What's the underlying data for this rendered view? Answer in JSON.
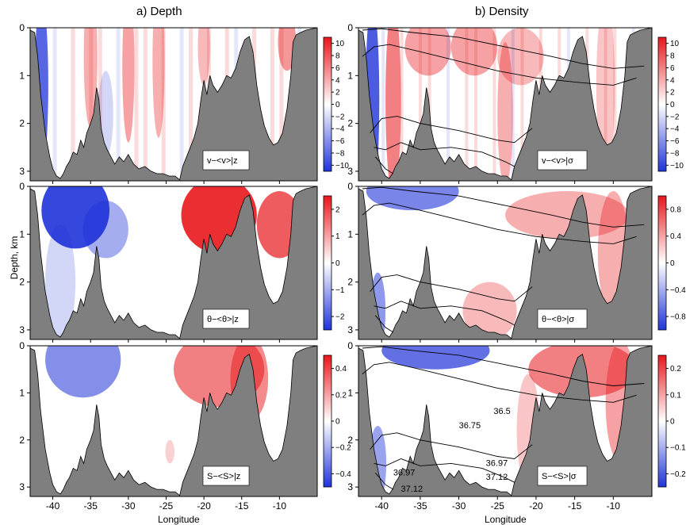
{
  "figure": {
    "col_titles": [
      "a) Depth",
      "b) Density"
    ],
    "ylabel": "Depth, km",
    "xlabel": "Longitude"
  },
  "chart_data": [
    {
      "type": "heatmap",
      "panel": "top-left",
      "inset_label": "v−<v>|z",
      "xlim": [
        -43,
        -5
      ],
      "ylim": [
        3.2,
        0
      ],
      "x_ticks": [
        "-40",
        "-35",
        "-30",
        "-25",
        "-20",
        "-15",
        "-10"
      ],
      "y_ticks": [
        "0",
        "1",
        "2",
        "3"
      ],
      "colorbar": {
        "range": [
          -10,
          10
        ],
        "ticks": [
          "10",
          "8",
          "6",
          "4",
          "2",
          "0",
          "−2",
          "−4",
          "−6",
          "−8",
          "−10"
        ]
      }
    },
    {
      "type": "heatmap",
      "panel": "top-right",
      "inset_label": "v−<v>|σ",
      "xlim": [
        -43,
        -5
      ],
      "ylim": [
        3.2,
        0
      ],
      "x_ticks": [
        "-40",
        "-35",
        "-30",
        "-25",
        "-20",
        "-15",
        "-10"
      ],
      "y_ticks": [
        "0",
        "1",
        "2",
        "3"
      ],
      "colorbar": {
        "range": [
          -10,
          10
        ],
        "ticks": [
          "10",
          "8",
          "6",
          "4",
          "2",
          "0",
          "−2",
          "−4",
          "−6",
          "−8",
          "−10"
        ]
      }
    },
    {
      "type": "heatmap",
      "panel": "middle-left",
      "inset_label": "θ−<θ>|z",
      "xlim": [
        -43,
        -5
      ],
      "ylim": [
        3.2,
        0
      ],
      "x_ticks": [
        "-40",
        "-35",
        "-30",
        "-25",
        "-20",
        "-15",
        "-10"
      ],
      "y_ticks": [
        "0",
        "1",
        "2",
        "3"
      ],
      "colorbar": {
        "range": [
          -2.5,
          2.5
        ],
        "ticks": [
          "2",
          "1",
          "0",
          "−1",
          "−2"
        ]
      }
    },
    {
      "type": "heatmap",
      "panel": "middle-right",
      "inset_label": "θ−<θ>|σ",
      "xlim": [
        -43,
        -5
      ],
      "ylim": [
        3.2,
        0
      ],
      "x_ticks": [
        "-40",
        "-35",
        "-30",
        "-25",
        "-20",
        "-15",
        "-10"
      ],
      "y_ticks": [
        "0",
        "1",
        "2",
        "3"
      ],
      "colorbar": {
        "range": [
          -1,
          1
        ],
        "ticks": [
          "0.8",
          "0.4",
          "0",
          "−0.4",
          "−0.8"
        ]
      }
    },
    {
      "type": "heatmap",
      "panel": "bottom-left",
      "inset_label": "S−<S>|z",
      "xlim": [
        -43,
        -5
      ],
      "ylim": [
        3.2,
        0
      ],
      "x_ticks": [
        "-40",
        "-35",
        "-30",
        "-25",
        "-20",
        "-15",
        "-10"
      ],
      "y_ticks": [
        "0",
        "1",
        "2",
        "3"
      ],
      "colorbar": {
        "range": [
          -0.5,
          0.5
        ],
        "ticks": [
          "0.4",
          "0.2",
          "0",
          "−0.2",
          "−0.4"
        ]
      }
    },
    {
      "type": "heatmap",
      "panel": "bottom-right",
      "inset_label": "S−<S>|σ",
      "xlim": [
        -43,
        -5
      ],
      "ylim": [
        3.2,
        0
      ],
      "x_ticks": [
        "-40",
        "-35",
        "-30",
        "-25",
        "-20",
        "-15",
        "-10"
      ],
      "y_ticks": [
        "0",
        "1",
        "2",
        "3"
      ],
      "colorbar": {
        "range": [
          -0.2,
          0.2
        ],
        "ticks": [
          "0.2",
          "0.1",
          "0",
          "−0.1",
          "−0.2"
        ]
      },
      "contour_labels": [
        "36.5",
        "36.75",
        "36.97",
        "36.97",
        "37.12",
        "37.12"
      ]
    }
  ],
  "colors": {
    "terrain": "#7f7f7f",
    "positive": "#e8171b",
    "negative": "#1f33d9",
    "neutral": "#ffffff"
  }
}
